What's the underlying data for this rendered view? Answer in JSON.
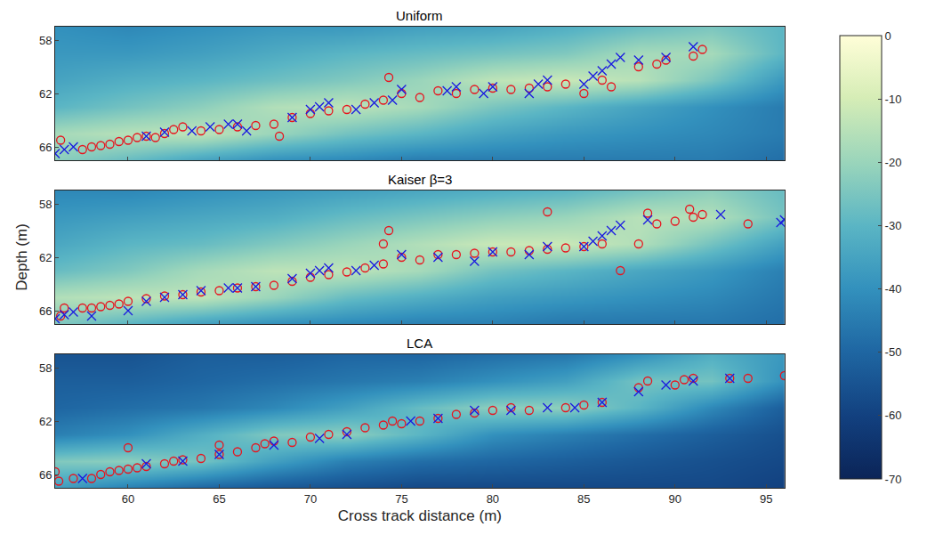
{
  "chart_data": [
    {
      "type": "heatmap",
      "title": "Uniform",
      "tick_labels": "y",
      "xlim": [
        56,
        96
      ],
      "xticks": [
        60,
        65,
        70,
        75,
        80,
        85,
        90,
        95
      ],
      "ylim": [
        67,
        57
      ],
      "yticks": [
        58,
        62,
        66
      ],
      "heatmap": {
        "x": [
          56,
          60,
          64,
          68,
          72,
          76,
          80,
          84,
          88,
          92,
          96
        ],
        "y": [
          57,
          59,
          61,
          63,
          65,
          67
        ],
        "z": [
          [
            -40,
            -42,
            -40,
            -38,
            -38,
            -36,
            -35,
            -32,
            -28,
            -25,
            -30
          ],
          [
            -38,
            -38,
            -36,
            -33,
            -30,
            -28,
            -26,
            -24,
            -18,
            -18,
            -30
          ],
          [
            -35,
            -32,
            -30,
            -27,
            -24,
            -20,
            -14,
            -12,
            -15,
            -25,
            -38
          ],
          [
            -30,
            -26,
            -22,
            -16,
            -14,
            -18,
            -25,
            -30,
            -35,
            -40,
            -45
          ],
          [
            -18,
            -15,
            -14,
            -20,
            -26,
            -30,
            -35,
            -38,
            -40,
            -42,
            -45
          ],
          [
            -22,
            -28,
            -35,
            -40,
            -42,
            -45,
            -45,
            -45,
            -45,
            -45,
            -48
          ]
        ]
      },
      "colorbar": {
        "range": [
          -70,
          0
        ],
        "ticks": [
          0,
          -10,
          -20,
          -30,
          -40,
          -50,
          -60,
          -70
        ]
      },
      "series": [
        {
          "type": "scatter",
          "marker": "circle-open",
          "color": "#e8141e",
          "x": [
            56.3,
            57.5,
            58,
            58.5,
            59,
            59.5,
            60,
            60.5,
            61,
            61.5,
            62,
            62.5,
            63,
            64,
            65,
            66,
            67,
            68,
            68.3,
            69,
            70,
            71,
            72,
            73,
            74,
            74.3,
            75,
            76,
            77,
            78,
            79,
            80,
            81,
            82,
            83,
            84,
            85,
            86,
            86.5,
            88,
            89,
            89.5,
            91,
            91.5
          ],
          "y": [
            65.5,
            66.2,
            66,
            65.9,
            65.8,
            65.6,
            65.5,
            65.3,
            65.2,
            65.3,
            65,
            64.7,
            64.5,
            64.8,
            64.7,
            64.5,
            64.4,
            64.3,
            65.2,
            63.8,
            63.5,
            63.3,
            63.2,
            62.8,
            62.5,
            60.8,
            62,
            62.3,
            61.8,
            62,
            61.7,
            61.6,
            61.7,
            61.6,
            61.5,
            61.3,
            62,
            61,
            61.5,
            60,
            59.8,
            59.5,
            59.2,
            58.7
          ]
        },
        {
          "type": "scatter",
          "marker": "x",
          "color": "#1a1ae0",
          "x": [
            56,
            56.5,
            57,
            61,
            62,
            63.5,
            64.5,
            65.5,
            66,
            66.5,
            69,
            70,
            70.5,
            71,
            72.5,
            73.5,
            74.5,
            75,
            77.5,
            78,
            79.5,
            80,
            82,
            82.5,
            83,
            85,
            85.5,
            86,
            86.5,
            87,
            88,
            89.5,
            91
          ],
          "y": [
            66.5,
            66.2,
            66,
            65.2,
            64.9,
            64.8,
            64.5,
            64.3,
            64.3,
            64.8,
            63.8,
            63.2,
            63,
            62.7,
            63.2,
            62.7,
            62.5,
            61.7,
            61.8,
            61.5,
            62,
            61.5,
            62,
            61.3,
            61,
            61.3,
            60.7,
            60.3,
            59.8,
            59.3,
            59.5,
            59.3,
            58.5
          ]
        }
      ]
    },
    {
      "type": "heatmap",
      "title": "Kaiser β=3",
      "ylabel": "Depth (m)",
      "tick_labels": "y",
      "xlim": [
        56,
        96
      ],
      "xticks": [
        60,
        65,
        70,
        75,
        80,
        85,
        90,
        95
      ],
      "ylim": [
        67,
        57
      ],
      "yticks": [
        58,
        62,
        66
      ],
      "heatmap": {
        "x": [
          56,
          60,
          64,
          68,
          72,
          76,
          80,
          84,
          88,
          92,
          96
        ],
        "y": [
          57,
          59,
          61,
          63,
          65,
          67
        ],
        "z": [
          [
            -42,
            -42,
            -40,
            -38,
            -36,
            -34,
            -32,
            -30,
            -26,
            -22,
            -28
          ],
          [
            -38,
            -36,
            -34,
            -32,
            -28,
            -25,
            -22,
            -20,
            -15,
            -16,
            -26
          ],
          [
            -34,
            -30,
            -28,
            -24,
            -20,
            -16,
            -12,
            -12,
            -16,
            -26,
            -36
          ],
          [
            -28,
            -24,
            -18,
            -14,
            -14,
            -18,
            -26,
            -30,
            -34,
            -38,
            -44
          ],
          [
            -16,
            -14,
            -14,
            -20,
            -28,
            -32,
            -36,
            -38,
            -40,
            -42,
            -46
          ],
          [
            -24,
            -30,
            -36,
            -40,
            -42,
            -44,
            -44,
            -46,
            -46,
            -46,
            -48
          ]
        ]
      },
      "colorbar": {
        "range": [
          -70,
          0
        ],
        "ticks": [
          0,
          -10,
          -20,
          -30,
          -40,
          -50,
          -60,
          -70
        ]
      },
      "series": [
        {
          "type": "scatter",
          "marker": "circle-open",
          "color": "#e8141e",
          "x": [
            56.3,
            56.5,
            57.5,
            58,
            58.5,
            59,
            59.5,
            60,
            61,
            62,
            63,
            64,
            65,
            66,
            67,
            68,
            69,
            70,
            71,
            72,
            73,
            74,
            74,
            74.3,
            75,
            76,
            77,
            78,
            79,
            80,
            81,
            82,
            83,
            83,
            84,
            85,
            86,
            87,
            88,
            88.5,
            89,
            90,
            90.8,
            91,
            91.5,
            94
          ],
          "y": [
            66.4,
            65.8,
            65.8,
            65.8,
            65.7,
            65.6,
            65.5,
            65.3,
            65.1,
            64.9,
            64.8,
            64.6,
            64.5,
            64.3,
            64.2,
            64.1,
            63.8,
            63.5,
            63.3,
            63.1,
            62.8,
            62.5,
            61,
            60,
            62,
            62.2,
            61.8,
            61.8,
            61.7,
            61.6,
            61.6,
            61.5,
            61.4,
            58.6,
            61.3,
            61.2,
            61,
            63,
            61,
            58.7,
            59.5,
            59.3,
            58.4,
            59,
            58.8,
            59.5
          ]
        },
        {
          "type": "scatter",
          "marker": "x",
          "color": "#1a1ae0",
          "x": [
            56,
            56.5,
            57,
            58,
            60,
            61,
            62,
            63,
            64,
            65.5,
            66,
            67,
            69,
            70,
            70.5,
            71,
            72.5,
            73.5,
            75,
            77,
            79,
            80,
            82,
            83,
            85,
            85.5,
            86,
            86.5,
            87,
            88.5,
            92.5,
            95.8,
            96
          ],
          "y": [
            66.6,
            66.3,
            66.1,
            66.4,
            66,
            65.3,
            65,
            64.8,
            64.5,
            64.3,
            64.3,
            64.2,
            63.6,
            63.2,
            63,
            62.8,
            63,
            62.6,
            61.8,
            62,
            62.3,
            61.6,
            61.8,
            61.2,
            61.2,
            60.8,
            60.4,
            60,
            59.6,
            59.2,
            58.8,
            59.4,
            59.2
          ]
        }
      ]
    },
    {
      "type": "heatmap",
      "title": "LCA",
      "xlabel": "Cross track distance (m)",
      "xlim": [
        56,
        96
      ],
      "xticks": [
        60,
        65,
        70,
        75,
        80,
        85,
        90,
        95
      ],
      "ylim": [
        67,
        57
      ],
      "yticks": [
        58,
        62,
        66
      ],
      "heatmap": {
        "x": [
          56,
          60,
          64,
          68,
          72,
          76,
          80,
          84,
          88,
          92,
          96
        ],
        "y": [
          57,
          59,
          61,
          63,
          65,
          67
        ],
        "z": [
          [
            -55,
            -55,
            -52,
            -52,
            -50,
            -50,
            -48,
            -46,
            -40,
            -32,
            -38
          ],
          [
            -52,
            -52,
            -50,
            -48,
            -46,
            -44,
            -40,
            -36,
            -26,
            -26,
            -40
          ],
          [
            -50,
            -48,
            -46,
            -42,
            -36,
            -28,
            -22,
            -22,
            -30,
            -42,
            -52
          ],
          [
            -44,
            -40,
            -32,
            -24,
            -22,
            -30,
            -40,
            -44,
            -48,
            -52,
            -56
          ],
          [
            -24,
            -22,
            -26,
            -36,
            -44,
            -48,
            -50,
            -52,
            -54,
            -56,
            -58
          ],
          [
            -36,
            -44,
            -50,
            -54,
            -56,
            -58,
            -58,
            -58,
            -58,
            -58,
            -60
          ]
        ]
      },
      "colorbar": {
        "range": [
          -70,
          0
        ],
        "ticks": [
          0,
          -10,
          -20,
          -30,
          -40,
          -50,
          -60,
          -70
        ]
      },
      "series": [
        {
          "type": "scatter",
          "marker": "circle-open",
          "color": "#e8141e",
          "x": [
            56,
            56.2,
            57,
            58,
            58.5,
            59,
            59.5,
            60,
            60,
            60.5,
            61,
            62,
            62.5,
            63,
            64,
            65,
            65,
            66,
            67,
            67.5,
            68,
            69,
            70,
            71,
            72,
            73,
            74,
            74.5,
            75,
            76,
            77,
            78,
            79,
            80,
            81,
            82,
            84,
            85,
            86,
            88,
            88.5,
            90,
            90.5,
            91,
            93,
            94,
            96
          ],
          "y": [
            65.8,
            66.5,
            66.3,
            66.3,
            66,
            65.8,
            65.7,
            65.6,
            64,
            65.5,
            65.4,
            65.2,
            65,
            64.9,
            64.8,
            64.5,
            63.8,
            64.3,
            64,
            63.7,
            63.5,
            63.6,
            63.2,
            63,
            62.8,
            62.5,
            62.3,
            62,
            62.2,
            62,
            61.8,
            61.5,
            61.4,
            61.2,
            61,
            61.2,
            61,
            60.8,
            60.6,
            59.5,
            59,
            59.3,
            58.9,
            58.8,
            58.8,
            58.8,
            58.6
          ]
        },
        {
          "type": "scatter",
          "marker": "x",
          "color": "#1a1ae0",
          "x": [
            57.5,
            61,
            63,
            65,
            68,
            70.5,
            72,
            75.5,
            77,
            79,
            81,
            83,
            84.5,
            86,
            88,
            89.5,
            91,
            93
          ],
          "y": [
            66.3,
            65.2,
            65,
            64.5,
            63.8,
            63.3,
            63,
            62,
            61.8,
            61.2,
            61.2,
            61,
            61,
            60.6,
            59.8,
            59.3,
            59,
            58.8
          ]
        }
      ]
    }
  ]
}
